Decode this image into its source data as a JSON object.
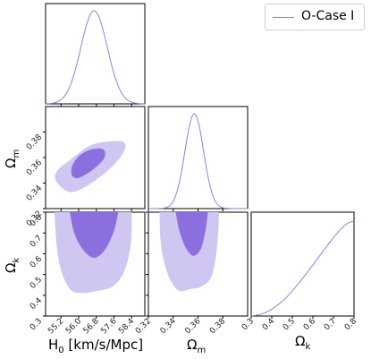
{
  "colors": {
    "line": "#8f7fe0",
    "inner": "#8c6fdf",
    "outer": "#cfc6f2"
  },
  "legend": {
    "label": "O-Case I"
  },
  "chart_data": {
    "type": "corner",
    "series": [
      {
        "name": "O-Case I"
      }
    ],
    "parameters": [
      {
        "key": "H0",
        "label_main": "H",
        "label_sub": "0",
        "label_rest": " [km/s/Mpc]",
        "range": [
          54.5,
          59.0
        ],
        "ticks": [
          "55.2",
          "56.0",
          "56.8",
          "57.6",
          "58.4"
        ]
      },
      {
        "key": "Om",
        "label_main": "Ω",
        "label_sub": "m",
        "label_rest": "",
        "range": [
          0.32,
          0.4
        ],
        "ticks": [
          "0.32",
          "0.34",
          "0.36",
          "0.38"
        ]
      },
      {
        "key": "Ok",
        "label_main": "Ω",
        "label_sub": "k",
        "label_rest": "",
        "range": [
          0.3,
          0.8
        ],
        "ticks": [
          "0.3",
          "0.4",
          "0.5",
          "0.6",
          "0.7",
          "0.8"
        ]
      }
    ],
    "marginals": {
      "H0": {
        "mean": 56.7,
        "sigma": 0.6
      },
      "Om": {
        "mean": 0.357,
        "sigma": 0.0075
      },
      "Ok": {
        "x": [
          0.3,
          0.35,
          0.4,
          0.45,
          0.5,
          0.55,
          0.6,
          0.65,
          0.7,
          0.75,
          0.78,
          0.8
        ],
        "y": [
          0.0,
          0.02,
          0.07,
          0.15,
          0.26,
          0.39,
          0.53,
          0.67,
          0.81,
          0.93,
          0.97,
          0.98
        ]
      }
    },
    "contours": {
      "H0_Om": {
        "inner": [
          [
            55.7,
            0.346
          ],
          [
            56.0,
            0.344
          ],
          [
            56.6,
            0.35
          ],
          [
            57.1,
            0.358
          ],
          [
            57.2,
            0.364
          ],
          [
            57.0,
            0.367
          ],
          [
            56.5,
            0.366
          ],
          [
            56.0,
            0.361
          ],
          [
            55.7,
            0.353
          ]
        ],
        "outer": [
          [
            55.0,
            0.341
          ],
          [
            55.6,
            0.333
          ],
          [
            56.4,
            0.338
          ],
          [
            57.4,
            0.351
          ],
          [
            58.0,
            0.363
          ],
          [
            58.1,
            0.371
          ],
          [
            57.7,
            0.373
          ],
          [
            56.6,
            0.37
          ],
          [
            55.6,
            0.358
          ],
          [
            55.0,
            0.349
          ]
        ]
      },
      "H0_Ok": {
        "inner": [
          [
            55.6,
            0.8
          ],
          [
            55.8,
            0.7
          ],
          [
            56.2,
            0.62
          ],
          [
            56.7,
            0.58
          ],
          [
            57.2,
            0.62
          ],
          [
            57.6,
            0.71
          ],
          [
            57.8,
            0.8
          ]
        ],
        "outer": [
          [
            54.9,
            0.8
          ],
          [
            55.0,
            0.64
          ],
          [
            55.2,
            0.52
          ],
          [
            55.6,
            0.43
          ],
          [
            56.1,
            0.41
          ],
          [
            56.8,
            0.42
          ],
          [
            57.5,
            0.44
          ],
          [
            58.0,
            0.5
          ],
          [
            58.3,
            0.6
          ],
          [
            58.4,
            0.7
          ],
          [
            58.4,
            0.8
          ]
        ]
      },
      "Om_Ok": {
        "inner": [
          [
            0.342,
            0.8
          ],
          [
            0.345,
            0.71
          ],
          [
            0.35,
            0.63
          ],
          [
            0.356,
            0.59
          ],
          [
            0.362,
            0.62
          ],
          [
            0.366,
            0.71
          ],
          [
            0.368,
            0.8
          ]
        ],
        "outer": [
          [
            0.329,
            0.8
          ],
          [
            0.33,
            0.65
          ],
          [
            0.334,
            0.53
          ],
          [
            0.34,
            0.45
          ],
          [
            0.346,
            0.42
          ],
          [
            0.354,
            0.43
          ],
          [
            0.362,
            0.44
          ],
          [
            0.37,
            0.48
          ],
          [
            0.374,
            0.57
          ],
          [
            0.376,
            0.68
          ],
          [
            0.377,
            0.8
          ]
        ]
      }
    }
  }
}
